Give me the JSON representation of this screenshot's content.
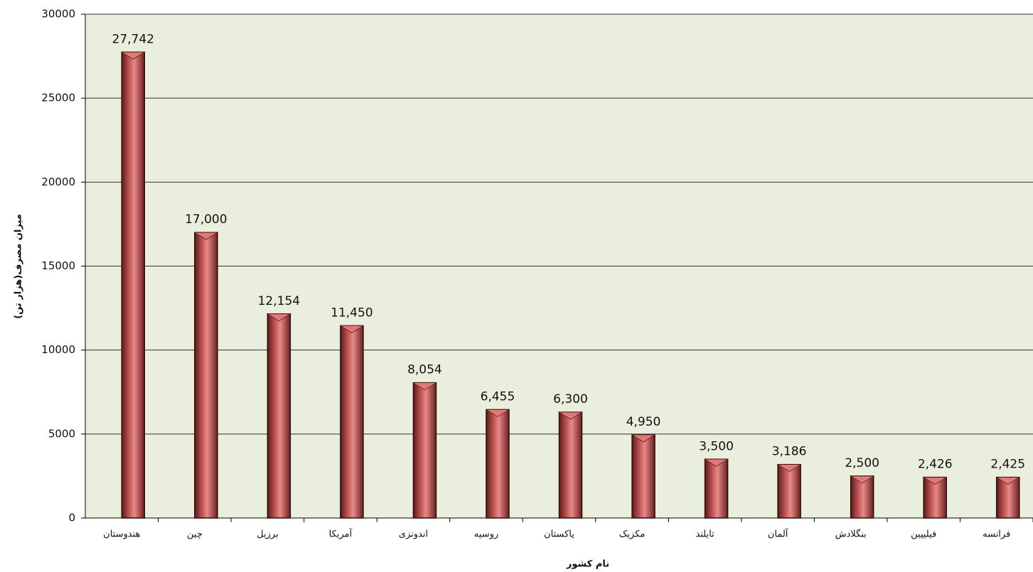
{
  "chart_data": {
    "type": "bar",
    "y_label": "میزان مصرف(هزار تن)",
    "x_label": "نام کشور",
    "categories": [
      "هندوستان",
      "چین",
      "برزیل",
      "آمریکا",
      "اندونزی",
      "روسیه",
      "پاکستان",
      "مکزیک",
      "تایلند",
      "آلمان",
      "بنگلادش",
      "فیلیپین",
      "فرانسه"
    ],
    "values": [
      27742,
      17000,
      12154,
      11450,
      8054,
      6455,
      6300,
      4950,
      3500,
      3186,
      2500,
      2426,
      2425
    ],
    "value_labels": [
      "27,742",
      "17,000",
      "12,154",
      "11,450",
      "8,054",
      "6,455",
      "6,300",
      "4,950",
      "3,500",
      "3,186",
      "2,500",
      "2,426",
      "2,425"
    ],
    "color": "#b54848",
    "ylim": [
      0,
      30000
    ],
    "yticks": [
      0,
      5000,
      10000,
      15000,
      20000,
      25000,
      30000
    ],
    "grid": true
  }
}
